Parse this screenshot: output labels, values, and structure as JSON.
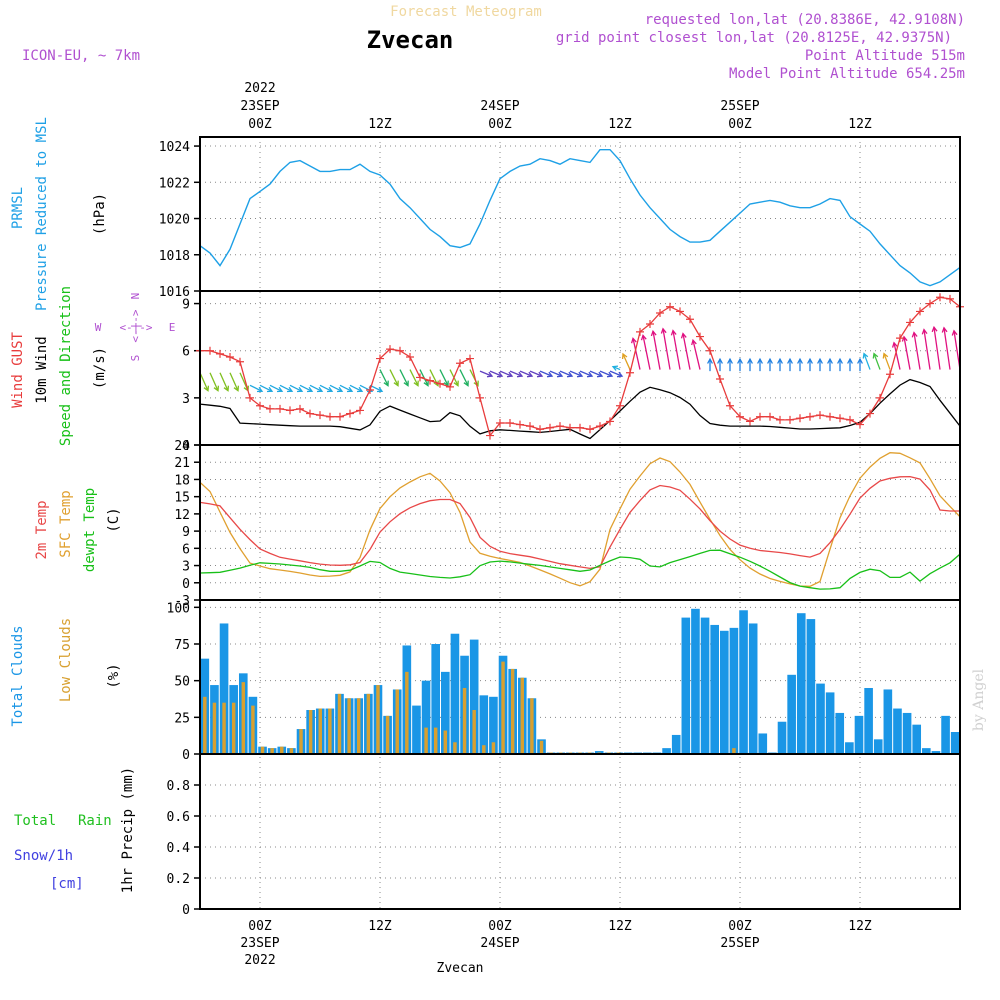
{
  "header": {
    "faded_title": "Forecast Meteogram",
    "station": "Zvecan",
    "model": "ICON-EU, ~ 7km",
    "requested": "requested lon,lat (20.8386E, 42.9108N)",
    "grid_point": "grid point closest lon,lat (20.8125E, 42.9375N)",
    "point_alt": "Point Altitude 515m",
    "model_alt": "Model Point Altitude 654.25m",
    "footer_station": "Zvecan",
    "watermark": "by Angel"
  },
  "colors": {
    "pressure": "#1ea0e6",
    "gust": "#e83c3c",
    "wind": "#000000",
    "temp2m": "#e84848",
    "sfc": "#e0a030",
    "dewpt": "#18c018",
    "total_clouds": "#1a96e6",
    "low_clouds": "#d8a030",
    "rain": "#20c020",
    "snow": "#4040e0",
    "purple": "#b050d0"
  },
  "time_axis": {
    "top_year": "2022",
    "labels": [
      {
        "hour": 6,
        "top": [
          "23SEP",
          "00Z"
        ],
        "bottom": [
          "00Z",
          "23SEP",
          "2022"
        ]
      },
      {
        "hour": 18,
        "top": [
          "12Z"
        ],
        "bottom": [
          "12Z"
        ]
      },
      {
        "hour": 30,
        "top": [
          "24SEP",
          "00Z"
        ],
        "bottom": [
          "00Z",
          "24SEP"
        ]
      },
      {
        "hour": 42,
        "top": [
          "12Z"
        ],
        "bottom": [
          "12Z"
        ]
      },
      {
        "hour": 54,
        "top": [
          "25SEP",
          "00Z"
        ],
        "bottom": [
          "00Z",
          "25SEP"
        ]
      },
      {
        "hour": 66,
        "top": [
          "12Z"
        ],
        "bottom": [
          "12Z"
        ]
      }
    ]
  },
  "panels": {
    "pressure": {
      "labels": [
        "PRMSL",
        "Pressure Reduced to MSL",
        "(hPa)"
      ]
    },
    "wind": {
      "labels": [
        "Wind GUST",
        "10m Wind",
        "Speed and Direction",
        "(m/s)"
      ],
      "compass": {
        "n": "N",
        "s": "S",
        "w": "W",
        "e": "E",
        "h": "<-|->",
        "v": "<-|->"
      }
    },
    "temp": {
      "labels": [
        "2m Temp",
        "SFC Temp",
        "dewpt Temp",
        "(C)"
      ]
    },
    "clouds": {
      "labels": [
        "Total Clouds",
        "Low Clouds",
        "(%)"
      ]
    },
    "precip": {
      "labels": [
        "Total",
        "Rain",
        "Snow/1h",
        "[cm]",
        "1hr Precip (mm)"
      ]
    }
  },
  "chart_data": [
    {
      "type": "line",
      "name": "pressure",
      "ylim": [
        1016,
        1024.5
      ],
      "yticks": [
        1016,
        1018,
        1020,
        1022,
        1024
      ],
      "x_hours": [
        0,
        1,
        2,
        3,
        4,
        5,
        6,
        7,
        8,
        9,
        10,
        11,
        12,
        13,
        14,
        15,
        16,
        17,
        18,
        19,
        20,
        21,
        22,
        23,
        24,
        25,
        26,
        27,
        28,
        29,
        30,
        31,
        32,
        33,
        34,
        35,
        36,
        37,
        38,
        39,
        40,
        41,
        42,
        43,
        44,
        45,
        46,
        47,
        48,
        49,
        50,
        51,
        52,
        53,
        54,
        55,
        56,
        57,
        58,
        59,
        60,
        61,
        62,
        63,
        64,
        65,
        66,
        67,
        68,
        69,
        70,
        71,
        72,
        73,
        74,
        75,
        76
      ],
      "values": [
        1018.5,
        1018.1,
        1017.4,
        1018.3,
        1019.7,
        1021.1,
        1021.5,
        1021.9,
        1022.6,
        1023.1,
        1023.2,
        1022.9,
        1022.6,
        1022.6,
        1022.7,
        1022.7,
        1023.0,
        1022.6,
        1022.4,
        1021.9,
        1021.1,
        1020.6,
        1020.0,
        1019.4,
        1019.0,
        1018.5,
        1018.4,
        1018.6,
        1019.7,
        1021.0,
        1022.2,
        1022.6,
        1022.9,
        1023.0,
        1023.3,
        1023.2,
        1023.0,
        1023.3,
        1023.2,
        1023.1,
        1023.8,
        1023.8,
        1023.2,
        1022.2,
        1021.3,
        1020.6,
        1020.0,
        1019.4,
        1019.0,
        1018.7,
        1018.7,
        1018.8,
        1019.3,
        1019.8,
        1020.3,
        1020.8,
        1020.9,
        1021.0,
        1020.9,
        1020.7,
        1020.6,
        1020.6,
        1020.8,
        1021.1,
        1021.0,
        1020.1,
        1019.7,
        1019.3,
        1018.6,
        1018.0,
        1017.4,
        1017.0,
        1016.5,
        1016.3,
        1016.5,
        1016.9,
        1017.3
      ]
    },
    {
      "type": "line",
      "name": "wind",
      "ylim": [
        0,
        9.8
      ],
      "yticks": [
        0,
        3,
        6,
        9
      ],
      "x_hours": [
        0,
        1,
        2,
        3,
        4,
        5,
        6,
        7,
        8,
        9,
        10,
        11,
        12,
        13,
        14,
        15,
        16,
        17,
        18,
        19,
        20,
        21,
        22,
        23,
        24,
        25,
        26,
        27,
        28,
        29,
        30,
        31,
        32,
        33,
        34,
        35,
        36,
        37,
        38,
        39,
        40,
        41,
        42,
        43,
        44,
        45,
        46,
        47,
        48,
        49,
        50,
        51,
        52,
        53,
        54,
        55,
        56,
        57,
        58,
        59,
        60,
        61,
        62,
        63,
        64,
        65,
        66,
        67,
        68,
        69,
        70,
        71,
        72,
        73,
        74,
        75,
        76
      ],
      "gust": [
        6.0,
        6.0,
        5.8,
        5.6,
        5.3,
        3.0,
        2.5,
        2.3,
        2.3,
        2.2,
        2.3,
        2.0,
        1.9,
        1.8,
        1.8,
        2.0,
        2.2,
        3.5,
        5.5,
        6.1,
        6.0,
        5.6,
        4.3,
        4.1,
        3.9,
        3.7,
        5.2,
        5.5,
        3.0,
        0.6,
        1.4,
        1.4,
        1.3,
        1.2,
        1.0,
        1.1,
        1.2,
        1.1,
        1.1,
        1.0,
        1.2,
        1.5,
        2.5,
        4.6,
        7.2,
        7.7,
        8.4,
        8.8,
        8.5,
        8.0,
        6.9,
        6.0,
        4.2,
        2.5,
        1.8,
        1.5,
        1.8,
        1.8,
        1.6,
        1.6,
        1.7,
        1.8,
        1.9,
        1.8,
        1.7,
        1.6,
        1.3,
        2.0,
        3.0,
        4.5,
        6.8,
        7.8,
        8.5,
        9.0,
        9.4,
        9.3,
        8.8
      ]
    },
    {
      "type": "line",
      "name": "temperature",
      "ylim": [
        -3,
        24
      ],
      "yticks": [
        -3,
        0,
        3,
        6,
        9,
        12,
        15,
        18,
        21,
        24
      ]
    },
    {
      "type": "bar",
      "name": "clouds",
      "ylim": [
        0,
        105
      ],
      "yticks": [
        0,
        25,
        50,
        75,
        100
      ]
    },
    {
      "type": "bar",
      "name": "precipitation",
      "ylim": [
        0,
        1
      ],
      "yticks": [
        0,
        0.2,
        0.4,
        0.6,
        0.8
      ],
      "rain": [],
      "snow": []
    }
  ]
}
